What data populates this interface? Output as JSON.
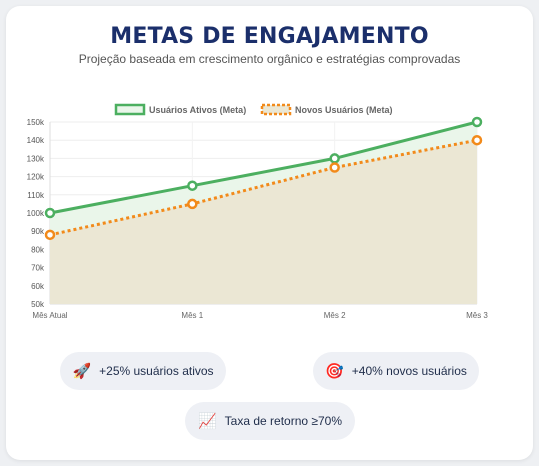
{
  "header": {
    "title": "METAS DE ENGAJAMENTO",
    "subtitle": "Projeção baseada em crescimento orgânico e estratégias comprovadas"
  },
  "chart_data": {
    "type": "line",
    "categories": [
      "Mês Atual",
      "Mês 1",
      "Mês 2",
      "Mês 3"
    ],
    "series": [
      {
        "name": "Usuários Ativos (Meta)",
        "values": [
          100000,
          115000,
          130000,
          150000
        ],
        "color": "#4caf60",
        "style": "solid",
        "fill": "#eaf6ea"
      },
      {
        "name": "Novos Usuários (Meta)",
        "values": [
          88000,
          105000,
          125000,
          140000
        ],
        "color": "#f28a1a",
        "style": "dotted",
        "fill": "#ebe7d4"
      }
    ],
    "ylim": [
      50000,
      150000
    ],
    "yticks": [
      "50k",
      "60k",
      "70k",
      "80k",
      "90k",
      "100k",
      "110k",
      "120k",
      "130k",
      "140k",
      "150k"
    ],
    "legend_position": "top-center",
    "grid": true
  },
  "badges": [
    {
      "icon": "🚀",
      "icon_name": "rocket-icon",
      "label": "+25% usuários ativos"
    },
    {
      "icon": "🎯",
      "icon_name": "target-icon",
      "label": "+40% novos usuários"
    },
    {
      "icon": "📈",
      "icon_name": "chart-up-icon",
      "label": "Taxa de retorno ≥70%"
    }
  ]
}
